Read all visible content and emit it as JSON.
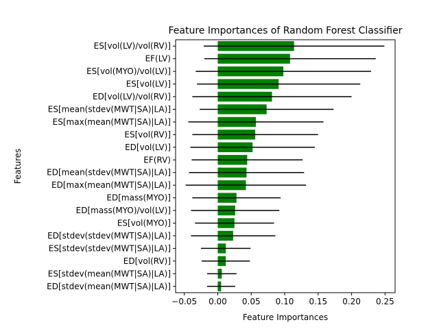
{
  "chart_data": {
    "type": "bar",
    "orientation": "horizontal",
    "title": "Feature Importances of Random Forest Classifier",
    "xlabel": "Feature Importances",
    "ylabel": "Features",
    "bar_color": "#008000",
    "errorbar_color": "#000000",
    "xlim": [
      -0.063,
      0.265
    ],
    "xticks": [
      -0.05,
      0.0,
      0.05,
      0.1,
      0.15,
      0.2,
      0.25
    ],
    "xtick_labels": [
      "−0.05",
      "0.00",
      "0.05",
      "0.10",
      "0.15",
      "0.20",
      "0.25"
    ],
    "grid": false,
    "legend": null,
    "series": [
      {
        "categories": [
          "ES[vol(LV)/vol(RV)]",
          "EF(LV)",
          "ES[vol(MYO)/vol(LV)]",
          "ES[vol(LV)]",
          "ED[vol(LV)/vol(RV)]",
          "ES[mean(stdev(MWT|SA)|LA)]",
          "ES[max(mean(MWT|SA)|LA)]",
          "ES[vol(RV)]",
          "ED[vol(LV)]",
          "EF(RV)",
          "ED[mean(stdev(MWT|SA)|LA)]",
          "ED[max(mean(MWT|SA)|LA)]",
          "ED[mass(MYO)]",
          "ED[mass(MYO)/vol(LV)]",
          "ES[vol(MYO)]",
          "ED[stdev(stdev(MWT|SA)|LA)]",
          "ES[stdev(stdev(MWT|SA)|LA)]",
          "ED[vol(RV)]",
          "ES[stdev(mean(MWT|SA)|LA)]",
          "ED[stdev(mean(MWT|SA)|LA)]"
        ],
        "values": [
          0.114,
          0.108,
          0.098,
          0.091,
          0.081,
          0.073,
          0.057,
          0.056,
          0.052,
          0.044,
          0.043,
          0.042,
          0.028,
          0.026,
          0.025,
          0.023,
          0.012,
          0.012,
          0.006,
          0.005
        ],
        "error": [
          0.135,
          0.128,
          0.131,
          0.122,
          0.119,
          0.1,
          0.101,
          0.094,
          0.093,
          0.083,
          0.086,
          0.09,
          0.066,
          0.066,
          0.059,
          0.063,
          0.037,
          0.036,
          0.022,
          0.021
        ]
      }
    ]
  }
}
